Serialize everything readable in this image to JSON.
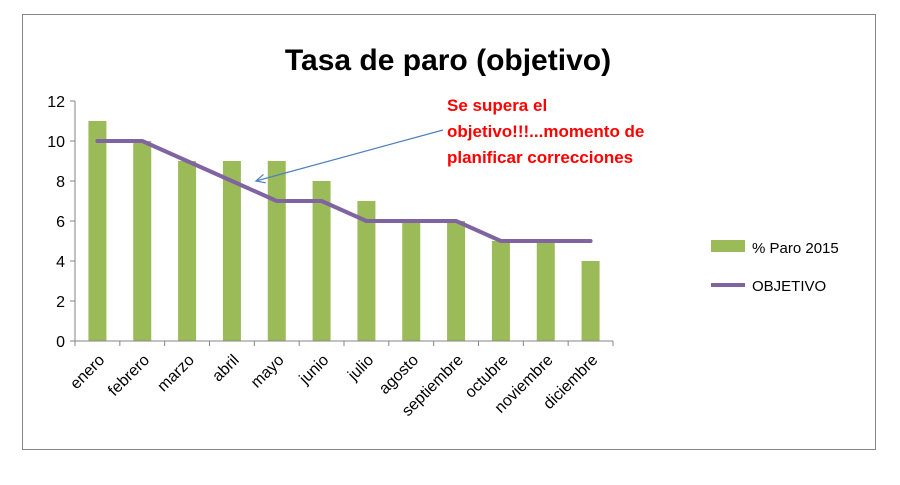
{
  "chart_data": {
    "type": "bar",
    "title": "Tasa de paro (objetivo)",
    "xlabel": "",
    "ylabel": "",
    "categories": [
      "enero",
      "febrero",
      "marzo",
      "abril",
      "mayo",
      "junio",
      "julio",
      "agosto",
      "septiembre",
      "octubre",
      "noviembre",
      "diciembre"
    ],
    "ylim": [
      0,
      12
    ],
    "yticks": [
      "0",
      "2",
      "4",
      "6",
      "8",
      "10",
      "12"
    ],
    "grid": false,
    "legend_position": "right",
    "series": [
      {
        "name": "% Paro 2015",
        "type": "bar",
        "color": "#9BBB59",
        "values": [
          11,
          10,
          9,
          9,
          9,
          8,
          7,
          6,
          6,
          5,
          5,
          4
        ]
      },
      {
        "name": "OBJETIVO",
        "type": "line",
        "color": "#8064A2",
        "values": [
          10,
          10,
          9,
          8,
          7,
          7,
          6,
          6,
          6,
          5,
          5,
          5
        ]
      }
    ],
    "annotation": {
      "lines": [
        "Se supera el",
        "objetivo!!!...momento de",
        "planificar correcciones"
      ],
      "color": "#FF0000",
      "arrow_color": "#4F81BD",
      "points_to": {
        "category": "abril",
        "value": 8
      }
    }
  }
}
